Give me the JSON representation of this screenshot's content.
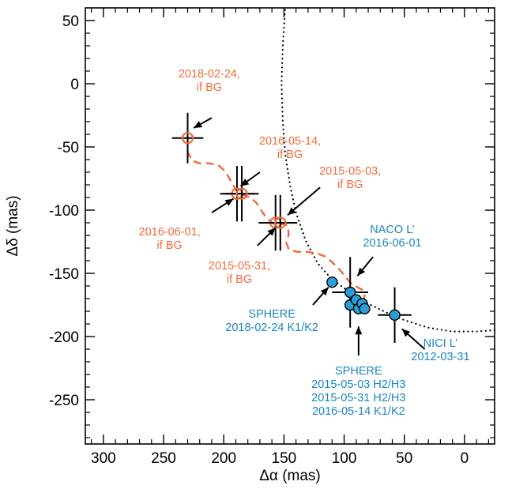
{
  "chart_data": {
    "type": "scatter",
    "title": "",
    "xlabel": "Δα (mas)",
    "ylabel": "Δδ (mas)",
    "xlim": [
      315,
      -25
    ],
    "ylim": [
      -285,
      60
    ],
    "x_reversed": true,
    "grid": false,
    "xticks": [
      300,
      250,
      200,
      150,
      100,
      50,
      0
    ],
    "yticks": [
      50,
      0,
      -50,
      -100,
      -150,
      -200,
      -250
    ],
    "colors": {
      "background": "#ffffff",
      "axes": "#000000",
      "bg_track": "#f06a3a",
      "measured": "#2a9fd6",
      "measured_text": "#1a86c0",
      "orbit": "#000000"
    },
    "series": [
      {
        "kind": "background-positions",
        "marker": "open-circle",
        "points": [
          {
            "x": 230,
            "y": -43,
            "xerr": 13,
            "yerr": 20,
            "label": "2018-02-24,\nif BG"
          },
          {
            "x": 189,
            "y": -87,
            "xerr": 14,
            "yerr": 22,
            "label": "2016-05-14,\nif BG"
          },
          {
            "x": 185,
            "y": -87,
            "xerr": 14,
            "yerr": 22,
            "label": "2016-06-01,\nif BG"
          },
          {
            "x": 157,
            "y": -110,
            "xerr": 14,
            "yerr": 22,
            "label": "2015-05-31,\nif BG"
          },
          {
            "x": 153,
            "y": -110,
            "xerr": 14,
            "yerr": 22,
            "label": "2015-05-03,\nif BG"
          }
        ]
      },
      {
        "kind": "measured-positions",
        "marker": "filled-circle",
        "points": [
          {
            "x": 110,
            "y": -157,
            "xerr": 4,
            "yerr": 4,
            "label": "SPHERE\n2018-02-24 K1/K2"
          },
          {
            "x": 95,
            "y": -165,
            "xerr": 15,
            "yerr": 28,
            "label": "NACO L’\n2016-06-01"
          },
          {
            "x": 95,
            "y": -175,
            "xerr": 3,
            "yerr": 3,
            "label": ""
          },
          {
            "x": 90,
            "y": -171,
            "xerr": 3,
            "yerr": 3,
            "label": ""
          },
          {
            "x": 88,
            "y": -178,
            "xerr": 3,
            "yerr": 3,
            "label": ""
          },
          {
            "x": 85,
            "y": -174,
            "xerr": 3,
            "yerr": 3,
            "label": "SPHERE\n2015-05-03 H2/H3\n2015-05-31 H2/H3\n2016-05-14 K1/K2"
          },
          {
            "x": 83,
            "y": -178,
            "xerr": 3,
            "yerr": 3,
            "label": ""
          },
          {
            "x": 58,
            "y": -183,
            "xerr": 14,
            "yerr": 22,
            "label": "NICI L’\n2012-03-31"
          }
        ]
      }
    ],
    "bg_track_curve": [
      [
        230,
        -43
      ],
      [
        230,
        -54
      ],
      [
        226,
        -61
      ],
      [
        220,
        -63
      ],
      [
        212,
        -63
      ],
      [
        205,
        -64
      ],
      [
        199,
        -69
      ],
      [
        194,
        -77
      ],
      [
        190,
        -84
      ],
      [
        184,
        -88
      ],
      [
        178,
        -90
      ],
      [
        173,
        -94
      ],
      [
        169,
        -100
      ],
      [
        164,
        -107
      ],
      [
        158,
        -111
      ],
      [
        152,
        -111
      ],
      [
        147,
        -112
      ],
      [
        146,
        -119
      ],
      [
        148,
        -126
      ],
      [
        146,
        -131
      ],
      [
        139,
        -133
      ],
      [
        131,
        -133
      ],
      [
        123,
        -134
      ],
      [
        115,
        -137
      ],
      [
        109,
        -142
      ],
      [
        102,
        -149
      ],
      [
        97,
        -155
      ],
      [
        93,
        -159
      ],
      [
        89,
        -161
      ],
      [
        85,
        -163
      ],
      [
        83,
        -167
      ],
      [
        84,
        -174
      ]
    ],
    "orbit_curve": [
      [
        -25,
        -195
      ],
      [
        -10,
        -196
      ],
      [
        10,
        -196
      ],
      [
        30,
        -193
      ],
      [
        50,
        -187
      ],
      [
        65,
        -181
      ],
      [
        80,
        -174
      ],
      [
        95,
        -165
      ],
      [
        110,
        -155
      ],
      [
        122,
        -142
      ],
      [
        132,
        -124
      ],
      [
        140,
        -102
      ],
      [
        145,
        -80
      ],
      [
        149,
        -55
      ],
      [
        151,
        -30
      ],
      [
        152,
        0
      ],
      [
        151,
        30
      ],
      [
        149,
        60
      ]
    ],
    "annotations": [
      {
        "text": [
          "2018-02-24,",
          "if BG"
        ],
        "color": "bg_track",
        "x": 212,
        "y": 5,
        "arrow": [
          [
            210,
            -27
          ],
          [
            225,
            -35
          ]
        ]
      },
      {
        "text": [
          "2016-05-14,",
          "if BG"
        ],
        "color": "bg_track",
        "x": 145,
        "y": -48,
        "arrow": [
          [
            170,
            -70
          ],
          [
            186,
            -81
          ]
        ]
      },
      {
        "text": [
          "2015-05-03,",
          "if BG"
        ],
        "color": "bg_track",
        "x": 95,
        "y": -72,
        "arrow": [
          [
            120,
            -82
          ],
          [
            147,
            -104
          ]
        ]
      },
      {
        "text": [
          "2016-06-01,",
          "if BG"
        ],
        "color": "bg_track",
        "x": 245,
        "y": -120,
        "arrow": [
          [
            210,
            -102
          ],
          [
            192,
            -91
          ]
        ]
      },
      {
        "text": [
          "2015-05-31,",
          "if BG"
        ],
        "color": "bg_track",
        "x": 187,
        "y": -147,
        "arrow": [
          [
            172,
            -128
          ],
          [
            157,
            -114
          ]
        ]
      },
      {
        "text": [
          "NACO L’",
          "2016-06-01"
        ],
        "color": "measured_text",
        "x": 60,
        "y": -118,
        "arrow": [
          [
            76,
            -137
          ],
          [
            89,
            -152
          ]
        ]
      },
      {
        "text": [
          "SPHERE",
          "2018-02-24 K1/K2"
        ],
        "color": "measured_text",
        "x": 160,
        "y": -185,
        "arrow": [
          [
            126,
            -175
          ],
          [
            113,
            -161
          ]
        ]
      },
      {
        "text": [
          "SPHERE",
          "2015-05-03 H2/H3",
          "2015-05-31 H2/H3",
          "2016-05-14 K1/K2"
        ],
        "color": "measured_text",
        "x": 88,
        "y": -230,
        "arrow": [
          [
            88,
            -215
          ],
          [
            88,
            -192
          ]
        ]
      },
      {
        "text": [
          "NICI L’",
          "2012-03-31"
        ],
        "color": "measured_text",
        "x": 20,
        "y": -208,
        "arrow": [
          [
            33,
            -210
          ],
          [
            52,
            -194
          ]
        ]
      }
    ]
  }
}
